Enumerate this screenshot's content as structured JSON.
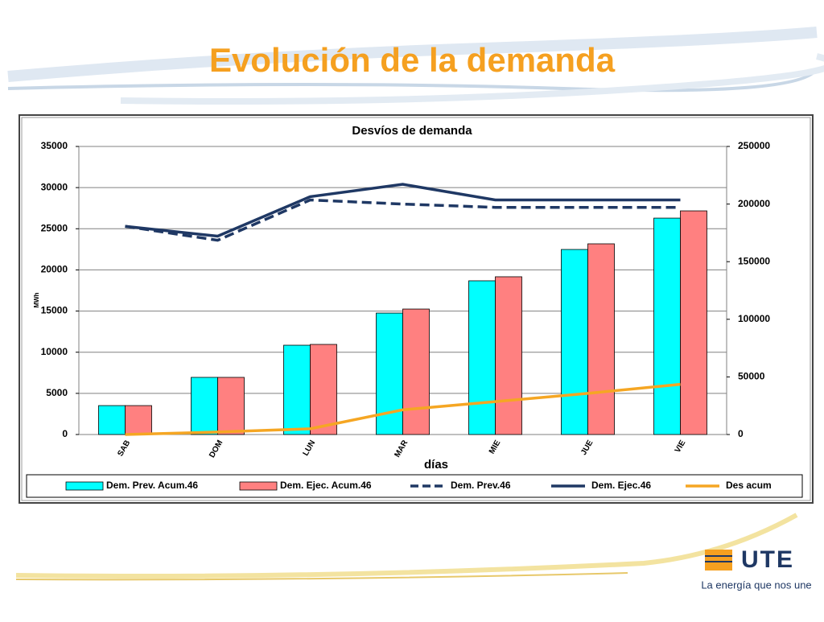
{
  "page_title": "Evolución de la demanda",
  "logo": {
    "name": "UTE",
    "slogan": "La energía que nos une"
  },
  "chart_data": {
    "type": "bar",
    "title": "Desvíos de demanda",
    "x_label": "días",
    "y_label": "MWh",
    "categories": [
      "SAB",
      "DOM",
      "LUN",
      "MAR",
      "MIE",
      "JUE",
      "VIE"
    ],
    "ylim": [
      0,
      35000
    ],
    "yticks": [
      0,
      5000,
      10000,
      15000,
      20000,
      25000,
      30000,
      35000
    ],
    "y2lim": [
      0,
      250000
    ],
    "y2ticks": [
      0,
      50000,
      100000,
      150000,
      200000,
      250000
    ],
    "grid": true,
    "legend": "bottom",
    "series": [
      {
        "name": "Dem. Prev. Acum.46",
        "type": "bar",
        "axis": "y2",
        "color": "#00ffff",
        "values": [
          25100,
          49600,
          77500,
          105400,
          133400,
          160600,
          187800
        ]
      },
      {
        "name": "Dem. Ejec. Acum.46",
        "type": "bar",
        "axis": "y2",
        "color": "#ff8080",
        "values": [
          25100,
          49600,
          78200,
          108900,
          136900,
          165500,
          194100
        ]
      },
      {
        "name": "Dem. Prev.46",
        "type": "line",
        "style": "dashed",
        "color": "#1f3864",
        "values": [
          25300,
          23600,
          28500,
          28000,
          27600,
          27600,
          27600
        ]
      },
      {
        "name": "Dem. Ejec.46",
        "type": "line",
        "style": "solid",
        "color": "#1f3864",
        "values": [
          25300,
          24100,
          28900,
          30400,
          28500,
          28500,
          28500
        ]
      },
      {
        "name": "Des acum",
        "type": "line",
        "style": "solid",
        "color": "#f5a623",
        "values": [
          0,
          300,
          700,
          3000,
          4000,
          5000,
          6100
        ]
      }
    ]
  }
}
